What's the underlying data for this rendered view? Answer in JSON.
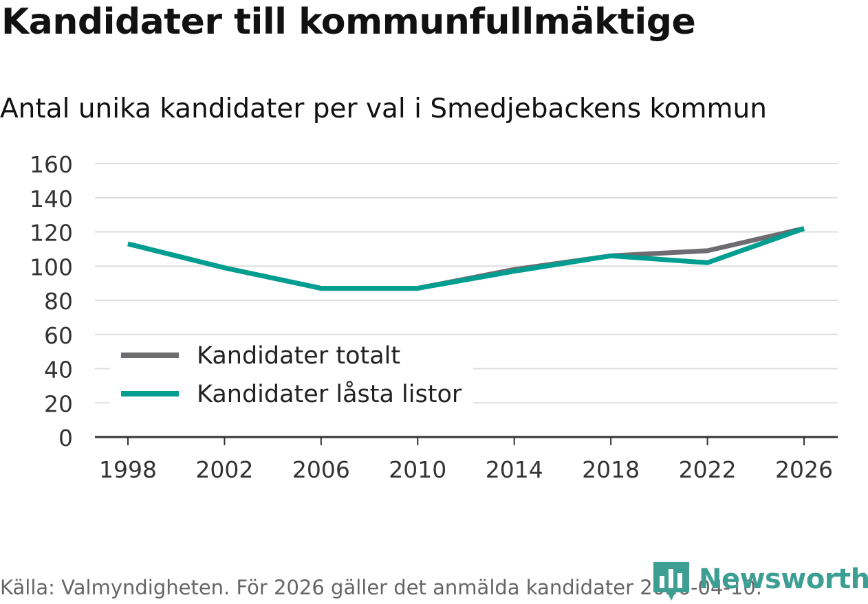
{
  "title": "Kandidater till kommunfullmäktige",
  "subtitle": "Antal unika kandidater per val i Smedjebackens kommun",
  "source": "Källa: Valmyndigheten. För 2026 gäller det anmälda kandidater 2026-04-10.",
  "brand": {
    "name": "Newsworthy",
    "color": "#3d9f93"
  },
  "colors": {
    "series_total": "#6e6c71",
    "series_locked": "#009e91",
    "grid": "#dddddd",
    "axis": "#333333"
  },
  "chart_data": {
    "type": "line",
    "x": [
      1998,
      2002,
      2006,
      2010,
      2014,
      2018,
      2022,
      2026
    ],
    "x_tick_labels": [
      "1998",
      "2002",
      "2006",
      "2010",
      "2014",
      "2018",
      "2022",
      "2026"
    ],
    "y_ticks": [
      0,
      20,
      40,
      60,
      80,
      100,
      120,
      140,
      160
    ],
    "ylim": [
      0,
      160
    ],
    "xlabel": "",
    "ylabel": "",
    "grid": true,
    "legend_position": "bottom-left",
    "series": [
      {
        "name": "Kandidater totalt",
        "color": "#6e6c71",
        "values": [
          113,
          99,
          87,
          87,
          98,
          106,
          109,
          122
        ]
      },
      {
        "name": "Kandidater låsta listor",
        "color": "#009e91",
        "values": [
          113,
          99,
          87,
          87,
          97,
          106,
          102,
          122
        ]
      }
    ]
  }
}
